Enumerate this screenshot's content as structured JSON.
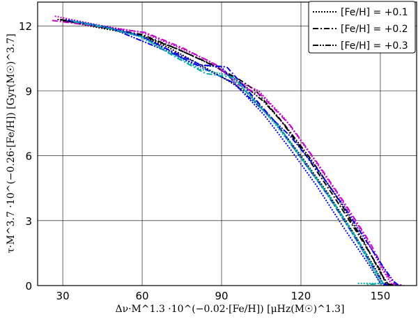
{
  "chart_data": {
    "type": "line",
    "title": "",
    "xlabel": "Δν·M^1.3 ·10^(−0.02·[Fe/H]) [μHz(M☉)^1.3]",
    "ylabel": "τ·M^3.7 ·10^(−0.26·[Fe/H]) [Gyr(M☉)^3.7]",
    "xlim": [
      20.5,
      163.7
    ],
    "ylim": [
      0,
      13.1
    ],
    "xticks": [
      30,
      60,
      90,
      120,
      150
    ],
    "yticks": [
      0,
      3,
      6,
      9,
      12
    ],
    "grid": true,
    "legend_position": "top-right",
    "legend": [
      {
        "label": "[Fe/H] = +0.1",
        "dash": "2,2",
        "color": "#000000"
      },
      {
        "label": "[Fe/H] = +0.2",
        "dash": "8,3,2,3",
        "color": "#000000"
      },
      {
        "label": "[Fe/H] = +0.3",
        "dash": "8,2,2,2,2,2",
        "color": "#000000"
      }
    ],
    "series": [
      {
        "name": "black +0.1",
        "color": "#000000",
        "dash": "2,2",
        "x": [
          28,
          40,
          58,
          70,
          82,
          92,
          100,
          110,
          120,
          130,
          140,
          148,
          151,
          155
        ],
        "y": [
          12.3,
          12.0,
          11.6,
          11.0,
          10.2,
          9.5,
          8.9,
          7.6,
          6.0,
          4.3,
          2.4,
          0.8,
          0.1,
          0
        ]
      },
      {
        "name": "black +0.2",
        "color": "#000000",
        "dash": "8,3,2,3",
        "x": [
          29,
          42,
          60,
          72,
          85,
          97,
          103,
          112,
          122,
          132,
          142,
          150,
          152,
          156
        ],
        "y": [
          12.3,
          12.0,
          11.6,
          11.0,
          10.3,
          9.5,
          9.0,
          7.7,
          6.0,
          4.2,
          2.3,
          0.7,
          0.1,
          0
        ]
      },
      {
        "name": "black +0.3",
        "color": "#000000",
        "dash": "8,2,2,2,2,2",
        "x": [
          30,
          44,
          60,
          74,
          88,
          98,
          106,
          114,
          124,
          134,
          143,
          150,
          153,
          157
        ],
        "y": [
          12.25,
          11.95,
          11.55,
          10.9,
          10.1,
          9.3,
          8.5,
          7.4,
          5.8,
          4.0,
          2.2,
          0.6,
          0.05,
          0
        ]
      },
      {
        "name": "magenta +0.1",
        "color": "#cc00cc",
        "dash": "2,2",
        "x": [
          27,
          45,
          60,
          72,
          85,
          95,
          104,
          114,
          124,
          134,
          144,
          151,
          154,
          158
        ],
        "y": [
          12.45,
          12.0,
          11.7,
          11.1,
          10.4,
          9.5,
          9.0,
          7.7,
          6.0,
          4.2,
          2.3,
          0.7,
          0.1,
          0
        ]
      },
      {
        "name": "magenta +0.2",
        "color": "#cc00cc",
        "dash": "8,3,2,3",
        "x": [
          26,
          45,
          61,
          75,
          88,
          96,
          105,
          116,
          126,
          136,
          146,
          152,
          155,
          159
        ],
        "y": [
          12.25,
          11.95,
          11.7,
          11.0,
          10.2,
          9.3,
          8.8,
          7.4,
          5.7,
          3.9,
          2.0,
          0.6,
          0.1,
          0
        ]
      },
      {
        "name": "blue +0.1",
        "color": "#0000ee",
        "dash": "2,2",
        "x": [
          31,
          45,
          58,
          68,
          80,
          90,
          96,
          106,
          116,
          126,
          136,
          146,
          150,
          152
        ],
        "y": [
          12.3,
          12.0,
          11.6,
          11.0,
          10.2,
          10.1,
          9.2,
          7.9,
          6.3,
          4.6,
          2.7,
          0.9,
          0.1,
          0
        ]
      },
      {
        "name": "blue +0.2",
        "color": "#0000ee",
        "dash": "8,3,2,3",
        "x": [
          32,
          46,
          60,
          70,
          82,
          92,
          100,
          110,
          120,
          130,
          140,
          148,
          151,
          153
        ],
        "y": [
          12.25,
          11.95,
          11.5,
          10.9,
          10.2,
          10.1,
          9.0,
          7.6,
          5.9,
          4.2,
          2.3,
          0.7,
          0.1,
          0
        ]
      },
      {
        "name": "blue +0.3",
        "color": "#0000ee",
        "dash": "8,2,2,2,2,2",
        "x": [
          35,
          48,
          60,
          72,
          84,
          94,
          104,
          116,
          126,
          136,
          146,
          152,
          155,
          157
        ],
        "y": [
          12.2,
          11.9,
          11.3,
          10.7,
          10.0,
          9.4,
          8.3,
          6.9,
          5.4,
          3.7,
          1.8,
          0.7,
          0.2,
          0
        ]
      },
      {
        "name": "cyan +0.1",
        "color": "#00aaaa",
        "dash": "2,2",
        "x": [
          33,
          46,
          59,
          70,
          82,
          93,
          100,
          110,
          120,
          130,
          140,
          148,
          150,
          141
        ],
        "y": [
          12.25,
          11.95,
          11.5,
          10.8,
          10.0,
          9.7,
          8.9,
          7.5,
          5.9,
          4.2,
          2.3,
          0.6,
          0.1,
          0.1
        ]
      },
      {
        "name": "cyan +0.2",
        "color": "#00aaaa",
        "dash": "8,3,2,3",
        "x": [
          34,
          47,
          60,
          72,
          84,
          95,
          101,
          112,
          122,
          132,
          142,
          149,
          151,
          145
        ],
        "y": [
          12.2,
          11.9,
          11.5,
          10.6,
          9.8,
          9.6,
          8.7,
          7.3,
          5.6,
          3.9,
          2.0,
          0.5,
          0.1,
          0.05
        ]
      }
    ]
  }
}
